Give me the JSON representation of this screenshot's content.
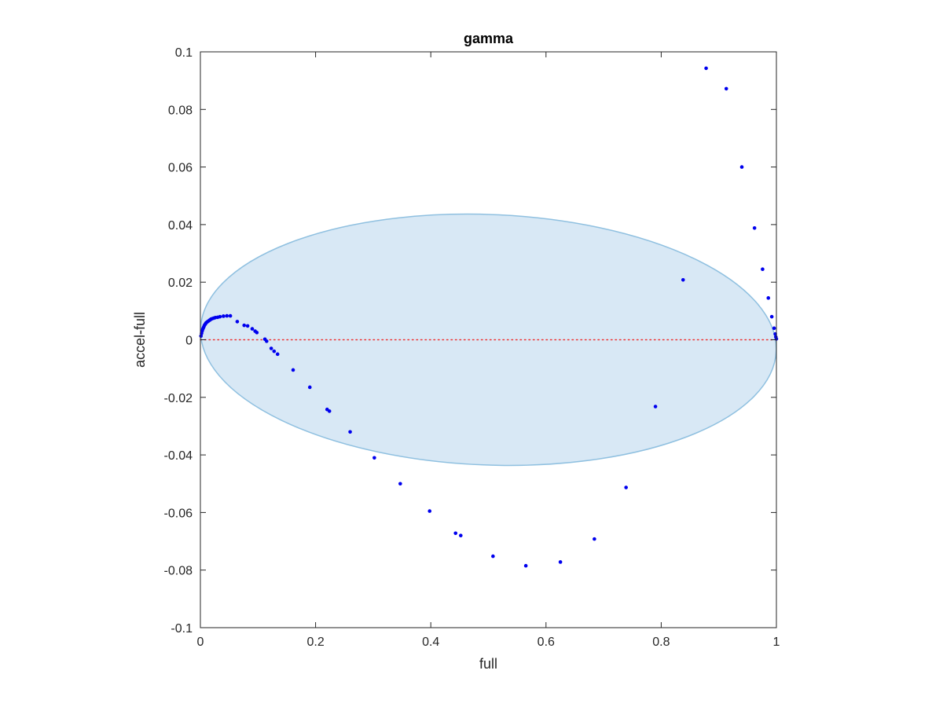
{
  "chart_data": {
    "type": "scatter",
    "title": "gamma",
    "xlabel": "full",
    "ylabel": "accel-full",
    "xlim": [
      0,
      1
    ],
    "ylim": [
      -0.1,
      0.1
    ],
    "xticks": [
      0,
      0.2,
      0.4,
      0.6,
      0.8,
      1
    ],
    "xtick_labels": [
      "0",
      "0.2",
      "0.4",
      "0.6",
      "0.8",
      "1"
    ],
    "yticks": [
      -0.1,
      -0.08,
      -0.06,
      -0.04,
      -0.02,
      0,
      0.02,
      0.04,
      0.06,
      0.08,
      0.1
    ],
    "ytick_labels": [
      "-0.1",
      "-0.08",
      "-0.06",
      "-0.04",
      "-0.02",
      "0",
      "0.02",
      "0.04",
      "0.06",
      "0.08",
      "0.1"
    ],
    "grid": false,
    "box": true,
    "colors": {
      "points": "#0000ee",
      "zero_line": "#ee3333",
      "ellipse_fill": "#d8e8f5",
      "ellipse_stroke": "#8fc0e0",
      "axis": "#262626"
    },
    "reference_line": {
      "y": 0,
      "style": "dotted"
    },
    "region": {
      "shape": "ellipse",
      "center": [
        0.5,
        0
      ],
      "semi_axis_x": 0.5,
      "semi_axis_y": 0.0435,
      "tilt_dy_over_dx": -0.0078
    },
    "series": [
      {
        "points": [
          [
            0.001,
            0.0013
          ],
          [
            0.002,
            0.0022
          ],
          [
            0.003,
            0.003
          ],
          [
            0.004,
            0.0036
          ],
          [
            0.005,
            0.0041
          ],
          [
            0.006,
            0.0045
          ],
          [
            0.007,
            0.005
          ],
          [
            0.008,
            0.0053
          ],
          [
            0.009,
            0.0056
          ],
          [
            0.01,
            0.0059
          ],
          [
            0.012,
            0.0062
          ],
          [
            0.014,
            0.0065
          ],
          [
            0.016,
            0.0068
          ],
          [
            0.018,
            0.0071
          ],
          [
            0.02,
            0.0073
          ],
          [
            0.023,
            0.0075
          ],
          [
            0.026,
            0.0077
          ],
          [
            0.03,
            0.0078
          ],
          [
            0.034,
            0.008
          ],
          [
            0.04,
            0.0082
          ],
          [
            0.046,
            0.0083
          ],
          [
            0.052,
            0.0083
          ],
          [
            0.064,
            0.0063
          ],
          [
            0.076,
            0.005
          ],
          [
            0.082,
            0.0048
          ],
          [
            0.09,
            0.0038
          ],
          [
            0.095,
            0.003
          ],
          [
            0.098,
            0.0025
          ],
          [
            0.112,
            0.0002
          ],
          [
            0.115,
            -0.0005
          ],
          [
            0.123,
            -0.003
          ],
          [
            0.128,
            -0.004
          ],
          [
            0.134,
            -0.005
          ],
          [
            0.161,
            -0.0105
          ],
          [
            0.19,
            -0.0165
          ],
          [
            0.22,
            -0.0242
          ],
          [
            0.224,
            -0.0248
          ],
          [
            0.26,
            -0.032
          ],
          [
            0.302,
            -0.041
          ],
          [
            0.347,
            -0.05
          ],
          [
            0.398,
            -0.0595
          ],
          [
            0.443,
            -0.0672
          ],
          [
            0.452,
            -0.068
          ],
          [
            0.508,
            -0.0752
          ],
          [
            0.565,
            -0.0785
          ],
          [
            0.625,
            -0.0772
          ],
          [
            0.684,
            -0.0692
          ],
          [
            0.739,
            -0.0513
          ],
          [
            0.79,
            -0.0232
          ],
          [
            0.838,
            0.0208
          ],
          [
            0.878,
            0.0943
          ],
          [
            0.913,
            0.0872
          ],
          [
            0.94,
            0.06
          ],
          [
            0.962,
            0.0388
          ],
          [
            0.976,
            0.0245
          ],
          [
            0.986,
            0.0145
          ],
          [
            0.992,
            0.008
          ],
          [
            0.996,
            0.004
          ],
          [
            0.998,
            0.002
          ],
          [
            0.999,
            0.001
          ],
          [
            1.0,
            0.0003
          ]
        ]
      }
    ]
  }
}
